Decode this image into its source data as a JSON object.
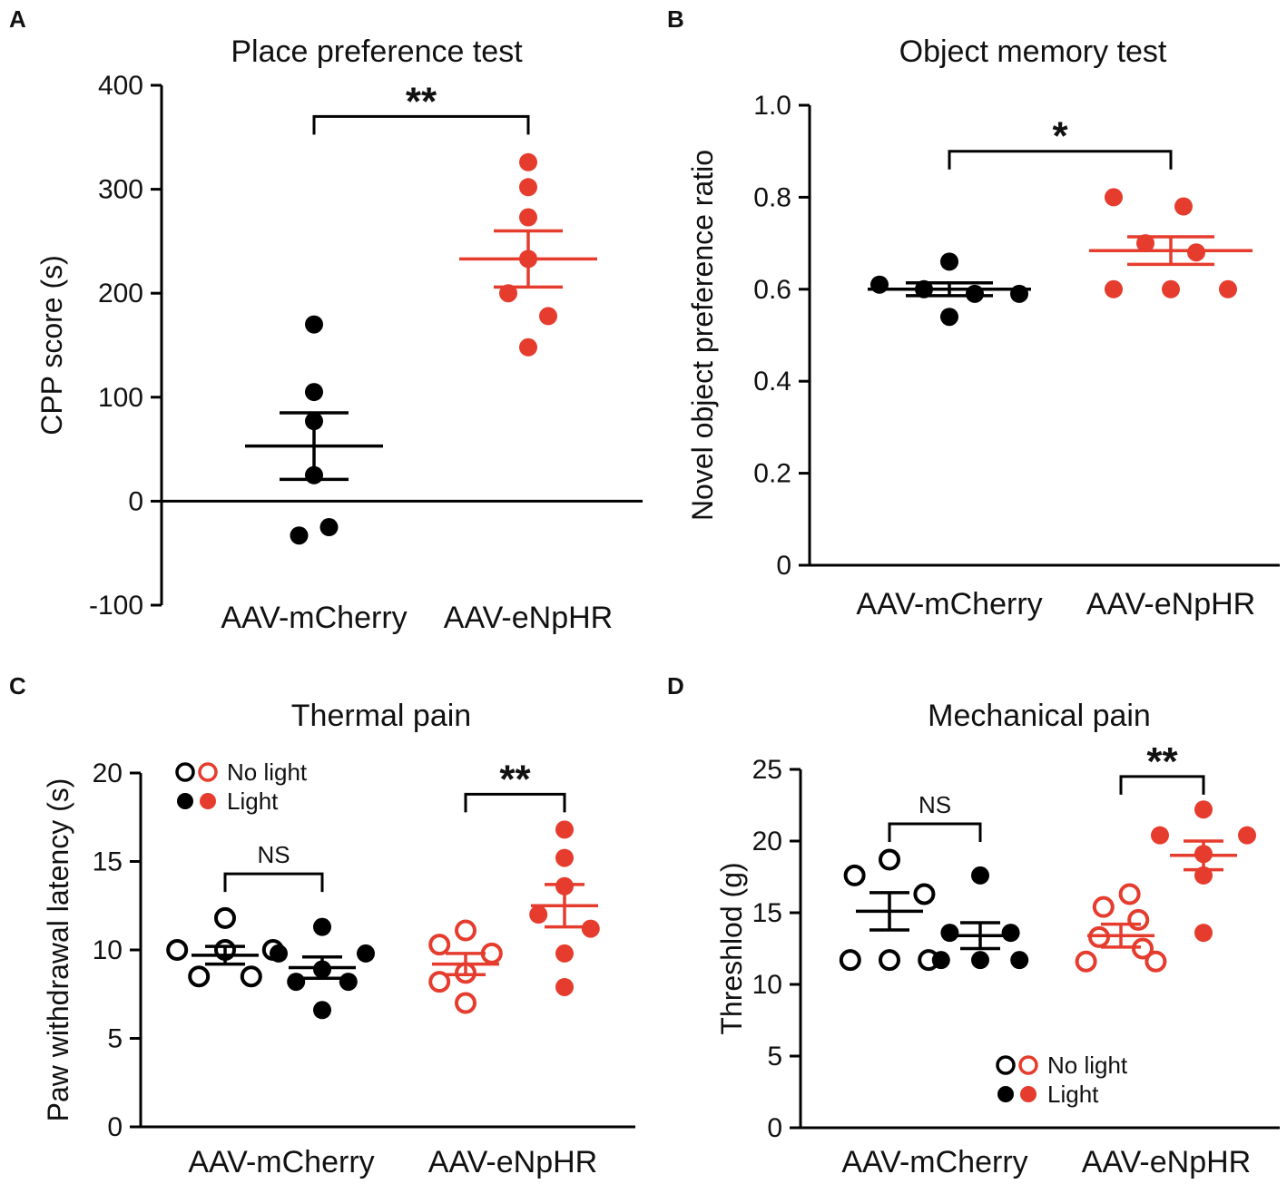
{
  "colors": {
    "black": "#000000",
    "red": "#e53c2e"
  },
  "chart_data": [
    {
      "id": "A",
      "panel_label": "A",
      "type": "scatter",
      "title": "Place preference test",
      "ylabel": "CPP score (s)",
      "ylim": [
        -100,
        400
      ],
      "yticks": [
        -100,
        0,
        100,
        200,
        300,
        400
      ],
      "categories": [
        "AAV-mCherry",
        "AAV-eNpHR"
      ],
      "series": [
        {
          "name": "AAV-mCherry",
          "color": "#000000",
          "filled": true,
          "mean": 53,
          "sem": 32,
          "values": [
            170,
            105,
            77,
            25,
            -25,
            -33
          ],
          "offsets": [
            0,
            0,
            0,
            0,
            0.15,
            -0.15
          ]
        },
        {
          "name": "AAV-eNpHR",
          "color": "#e53c2e",
          "filled": true,
          "mean": 233,
          "sem": 27,
          "values": [
            326,
            302,
            273,
            233,
            200,
            178,
            148
          ],
          "offsets": [
            0,
            0,
            0,
            0,
            -0.2,
            0.2,
            0
          ]
        }
      ],
      "significance": [
        {
          "from": 0,
          "to": 1,
          "label": "**",
          "y": 370
        }
      ],
      "zero_line": true
    },
    {
      "id": "B",
      "panel_label": "B",
      "type": "scatter",
      "title": "Object memory test",
      "ylabel": "Novel object preference ratio",
      "ylim": [
        0,
        1.0
      ],
      "yticks": [
        0,
        0.2,
        0.4,
        0.6,
        0.8,
        1.0
      ],
      "tick_labels": [
        "0",
        "0.2",
        "0.4",
        "0.6",
        "0.8",
        "1.0"
      ],
      "categories": [
        "AAV-mCherry",
        "AAV-eNpHR"
      ],
      "series": [
        {
          "name": "AAV-mCherry",
          "color": "#000000",
          "filled": true,
          "mean": 0.6,
          "sem": 0.014,
          "values": [
            0.66,
            0.61,
            0.6,
            0.59,
            0.59,
            0.54
          ],
          "offsets": [
            0,
            -0.55,
            -0.2,
            0.2,
            0.55,
            0
          ]
        },
        {
          "name": "AAV-eNpHR",
          "color": "#e53c2e",
          "filled": true,
          "mean": 0.684,
          "sem": 0.03,
          "values": [
            0.8,
            0.78,
            0.7,
            0.68,
            0.6,
            0.6,
            0.6
          ],
          "offsets": [
            -0.45,
            0.1,
            -0.2,
            0.2,
            -0.45,
            0,
            0.45
          ]
        }
      ],
      "significance": [
        {
          "from": 0,
          "to": 1,
          "label": "*",
          "y": 0.9
        }
      ]
    },
    {
      "id": "C",
      "panel_label": "C",
      "type": "scatter",
      "title": "Thermal pain",
      "ylabel": "Paw withdrawal latency (s)",
      "ylim": [
        0,
        20
      ],
      "yticks": [
        0,
        5,
        10,
        15,
        20
      ],
      "categories": [
        "AAV-mCherry",
        "AAV-eNpHR"
      ],
      "legend": {
        "position": "top-left",
        "items": [
          {
            "label": "No light",
            "filled": false
          },
          {
            "label": "Light",
            "filled": true
          }
        ]
      },
      "groups": [
        {
          "category": "AAV-mCherry",
          "condition": "No light",
          "color": "#000000",
          "filled": false,
          "mean": 9.7,
          "sem": 0.5,
          "values": [
            11.8,
            10.0,
            10.0,
            10.0,
            8.5,
            8.5
          ],
          "offsets": [
            0,
            -0.55,
            0,
            0.55,
            -0.3,
            0.3
          ]
        },
        {
          "category": "AAV-mCherry",
          "condition": "Light",
          "color": "#000000",
          "filled": true,
          "mean": 9.0,
          "sem": 0.6,
          "values": [
            11.3,
            9.8,
            9.8,
            8.9,
            8.2,
            8.2,
            6.6
          ],
          "offsets": [
            0,
            -0.5,
            0.5,
            0,
            -0.3,
            0.3,
            0
          ]
        },
        {
          "category": "AAV-eNpHR",
          "condition": "No light",
          "color": "#e53c2e",
          "filled": false,
          "mean": 9.2,
          "sem": 0.6,
          "values": [
            11.1,
            10.3,
            9.8,
            8.7,
            8.2,
            7.0
          ],
          "offsets": [
            0,
            -0.3,
            0.3,
            0,
            -0.3,
            0
          ]
        },
        {
          "category": "AAV-eNpHR",
          "condition": "Light",
          "color": "#e53c2e",
          "filled": true,
          "mean": 12.5,
          "sem": 1.2,
          "values": [
            16.8,
            15.2,
            13.6,
            12.0,
            11.2,
            9.8,
            7.9
          ],
          "offsets": [
            0,
            0,
            0,
            -0.3,
            0.3,
            0,
            0
          ]
        }
      ],
      "significance": [
        {
          "from": 0,
          "to": 1,
          "label": "NS",
          "y": 14.3
        },
        {
          "from": 2,
          "to": 3,
          "label": "**",
          "y": 18.8
        }
      ]
    },
    {
      "id": "D",
      "panel_label": "D",
      "type": "scatter",
      "title": "Mechanical pain",
      "ylabel": "Threshlod (g)",
      "ylim": [
        0,
        25
      ],
      "yticks": [
        0,
        5,
        10,
        15,
        20,
        25
      ],
      "categories": [
        "AAV-mCherry",
        "AAV-eNpHR"
      ],
      "legend": {
        "position": "bottom-right",
        "items": [
          {
            "label": "No light",
            "filled": false
          },
          {
            "label": "Light",
            "filled": true
          }
        ]
      },
      "groups": [
        {
          "category": "AAV-mCherry",
          "condition": "No light",
          "color": "#000000",
          "filled": false,
          "mean": 15.1,
          "sem": 1.3,
          "values": [
            18.7,
            17.6,
            16.3,
            11.7,
            11.7,
            11.7
          ],
          "offsets": [
            0,
            -0.4,
            0.4,
            -0.45,
            0,
            0.45
          ]
        },
        {
          "category": "AAV-mCherry",
          "condition": "Light",
          "color": "#000000",
          "filled": true,
          "mean": 13.4,
          "sem": 0.9,
          "values": [
            17.6,
            13.6,
            13.6,
            11.7,
            11.7,
            11.7
          ],
          "offsets": [
            0,
            -0.35,
            0.35,
            -0.45,
            0,
            0.45
          ]
        },
        {
          "category": "AAV-eNpHR",
          "condition": "No light",
          "color": "#e53c2e",
          "filled": false,
          "mean": 13.4,
          "sem": 0.8,
          "values": [
            16.3,
            15.4,
            14.5,
            13.3,
            12.5,
            11.6,
            11.6
          ],
          "offsets": [
            0.1,
            -0.2,
            0.2,
            -0.25,
            0.25,
            -0.4,
            0.4
          ]
        },
        {
          "category": "AAV-eNpHR",
          "condition": "Light",
          "color": "#e53c2e",
          "filled": true,
          "mean": 19.0,
          "sem": 1.0,
          "values": [
            22.2,
            20.4,
            20.4,
            19.1,
            17.6,
            13.6
          ],
          "offsets": [
            0,
            -0.5,
            0.5,
            0,
            0,
            0
          ]
        }
      ],
      "significance": [
        {
          "from": 0,
          "to": 1,
          "label": "NS",
          "y": 21.2
        },
        {
          "from": 2,
          "to": 3,
          "label": "**",
          "y": 24.5
        }
      ]
    }
  ]
}
